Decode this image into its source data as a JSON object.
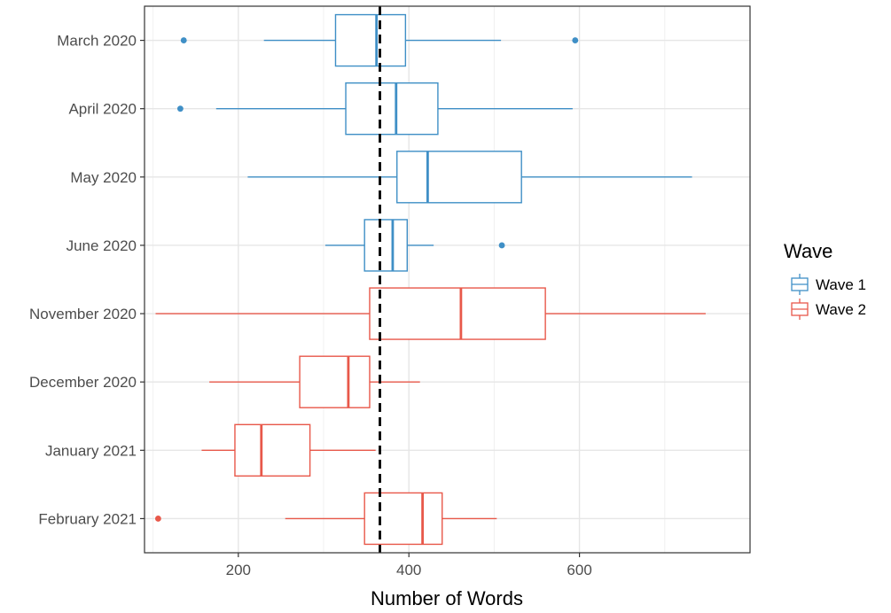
{
  "chart_data": {
    "type": "boxplot",
    "orientation": "horizontal",
    "title": "",
    "xlabel": "Number of Words",
    "ylabel": "",
    "xlim": [
      90,
      800
    ],
    "xticks": [
      200,
      400,
      600
    ],
    "reference_line": {
      "x": 366,
      "style": "dashed",
      "color": "#000000"
    },
    "grid": true,
    "legend": {
      "title": "Wave",
      "placement": "right",
      "entries": [
        {
          "name": "Wave 1",
          "color": "#3f8fc6"
        },
        {
          "name": "Wave 2",
          "color": "#e8584a"
        }
      ]
    },
    "categories": [
      "March 2020",
      "April 2020",
      "May 2020",
      "June 2020",
      "November 2020",
      "December 2020",
      "January 2021",
      "February 2021"
    ],
    "boxes": [
      {
        "label": "March 2020",
        "wave": "Wave 1",
        "whisker_low": 230,
        "q1": 314,
        "median": 362,
        "q3": 396,
        "whisker_high": 508,
        "outliers": [
          136,
          595
        ]
      },
      {
        "label": "April 2020",
        "wave": "Wave 1",
        "whisker_low": 174,
        "q1": 326,
        "median": 385,
        "q3": 434,
        "whisker_high": 592,
        "outliers": [
          132
        ]
      },
      {
        "label": "May 2020",
        "wave": "Wave 1",
        "whisker_low": 211,
        "q1": 386,
        "median": 422,
        "q3": 532,
        "whisker_high": 732,
        "outliers": []
      },
      {
        "label": "June 2020",
        "wave": "Wave 1",
        "whisker_low": 302,
        "q1": 348,
        "median": 381,
        "q3": 398,
        "whisker_high": 429,
        "outliers": [
          509
        ]
      },
      {
        "label": "November 2020",
        "wave": "Wave 2",
        "whisker_low": 103,
        "q1": 354,
        "median": 461,
        "q3": 560,
        "whisker_high": 748,
        "outliers": []
      },
      {
        "label": "December 2020",
        "wave": "Wave 2",
        "whisker_low": 166,
        "q1": 272,
        "median": 329,
        "q3": 354,
        "whisker_high": 413,
        "outliers": []
      },
      {
        "label": "January 2021",
        "wave": "Wave 2",
        "whisker_low": 157,
        "q1": 196,
        "median": 227,
        "q3": 284,
        "whisker_high": 361,
        "outliers": []
      },
      {
        "label": "February 2021",
        "wave": "Wave 2",
        "whisker_low": 255,
        "q1": 348,
        "median": 416,
        "q3": 439,
        "whisker_high": 503,
        "outliers": [
          106
        ]
      }
    ]
  }
}
